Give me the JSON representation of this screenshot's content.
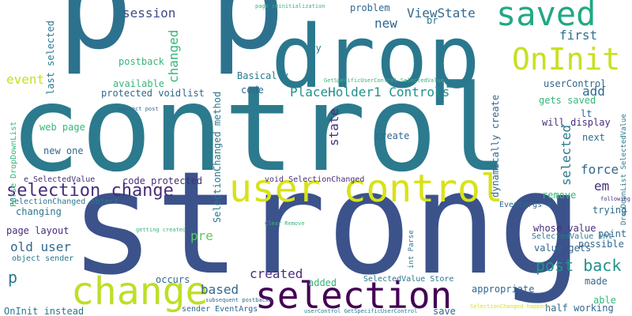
{
  "words": [
    {
      "text": "control"
    },
    {
      "text": "strong"
    },
    {
      "text": "p p"
    },
    {
      "text": "drop"
    },
    {
      "text": "saved"
    },
    {
      "text": "OnInit"
    },
    {
      "text": "user control"
    },
    {
      "text": "selection"
    },
    {
      "text": "change"
    },
    {
      "text": "selection change"
    },
    {
      "text": "session"
    },
    {
      "text": "new"
    },
    {
      "text": "ViewState"
    },
    {
      "text": "problem"
    },
    {
      "text": "first"
    },
    {
      "text": "way"
    },
    {
      "text": "br"
    },
    {
      "text": "changed"
    },
    {
      "text": "event"
    },
    {
      "text": "postback"
    },
    {
      "text": "last selected"
    },
    {
      "text": "Basically"
    },
    {
      "text": "available"
    },
    {
      "text": "protected void"
    },
    {
      "text": "list"
    },
    {
      "text": "code"
    },
    {
      "text": "PlaceHolder1 Controls"
    },
    {
      "text": "add"
    },
    {
      "text": "userControl"
    },
    {
      "text": "lt"
    },
    {
      "text": "gets saved"
    },
    {
      "text": "will display"
    },
    {
      "text": "next"
    },
    {
      "text": "web page"
    },
    {
      "text": "new one"
    },
    {
      "text": "state"
    },
    {
      "text": "create"
    },
    {
      "text": "selected"
    },
    {
      "text": "force"
    },
    {
      "text": "em"
    },
    {
      "text": "dynamically create"
    },
    {
      "text": "SelectionChanged method"
    },
    {
      "text": "code protected"
    },
    {
      "text": "void SelectionChanged"
    },
    {
      "text": "e SelectedValue"
    },
    {
      "text": "Parse DropDownList"
    },
    {
      "text": "SelectionChanged object"
    },
    {
      "text": "changing"
    },
    {
      "text": "remove"
    },
    {
      "text": "trying"
    },
    {
      "text": "EventArgs e"
    },
    {
      "text": "point"
    },
    {
      "text": "whose value"
    },
    {
      "text": "SelectedValue int"
    },
    {
      "text": "possible"
    },
    {
      "text": "page layout"
    },
    {
      "text": "pre"
    },
    {
      "text": "old user"
    },
    {
      "text": "object sender"
    },
    {
      "text": "value gets"
    },
    {
      "text": "post back"
    },
    {
      "text": "p"
    },
    {
      "text": "based"
    },
    {
      "text": "created"
    },
    {
      "text": "occurs"
    },
    {
      "text": "added"
    },
    {
      "text": "SelectedValue Store"
    },
    {
      "text": "appropriate"
    },
    {
      "text": "made"
    },
    {
      "text": "able"
    },
    {
      "text": "half working"
    },
    {
      "text": "save"
    },
    {
      "text": "OnInit instead"
    },
    {
      "text": "sender EventArgs"
    },
    {
      "text": "int Parse"
    },
    {
      "text": "DropDownList SelectedValue"
    },
    {
      "text": "following post"
    },
    {
      "text": "page reinitialization"
    },
    {
      "text": "GetSpecificUserControl SelectedValue"
    },
    {
      "text": "correct post"
    },
    {
      "text": "getting created"
    },
    {
      "text": "Clear Remove"
    },
    {
      "text": "subsequent postbacks"
    },
    {
      "text": "userControl GetSpecificUserControl"
    },
    {
      "text": "SelectionChanged happens"
    }
  ]
}
